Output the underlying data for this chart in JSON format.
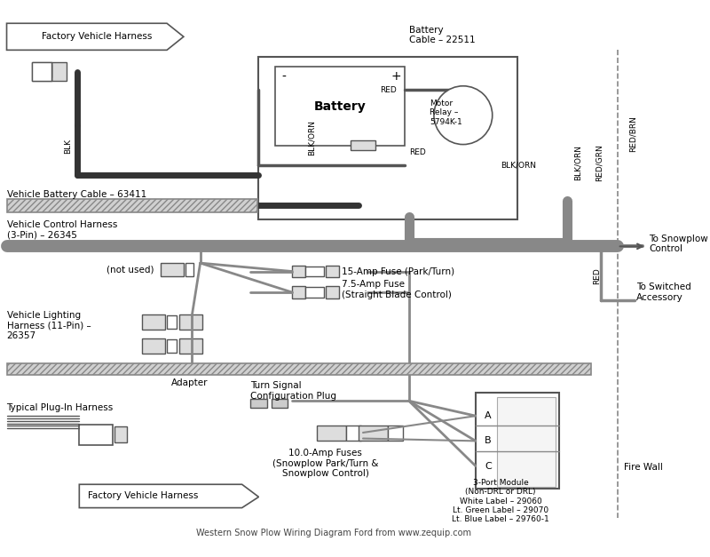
{
  "title": "Western Snow Plow Wiring Diagram Ford from www.zequip.com",
  "bg_color": "#ffffff",
  "wire_color": "#808080",
  "wire_thick_color": "#404040",
  "black_wire": "#222222",
  "label_fontsize": 7.5,
  "small_fontsize": 6.5,
  "labels": {
    "factory_vehicle_harness_top": "Factory Vehicle Harness",
    "battery_cable": "Battery\nCable – 22511",
    "battery_label": "Battery",
    "motor_relay": "Motor\nRelay –\n5794K-1",
    "vehicle_battery_cable": "Vehicle Battery Cable – 63411",
    "vehicle_control_harness": "Vehicle Control Harness\n(3-Pin) – 26345",
    "not_used": "(not used)",
    "fuse_15": "15-Amp Fuse (Park/Turn)",
    "fuse_7_5": "7.5-Amp Fuse\n(Straight Blade Control)",
    "vehicle_lighting": "Vehicle Lighting\nHarness (11-Pin) –\n26357",
    "adapter": "Adapter",
    "turn_signal": "Turn Signal\nConfiguration Plug",
    "typical_plug": "Typical Plug-In Harness",
    "fuses_10": "10.0-Amp Fuses\n(Snowplow Park/Turn &\nSnowplow Control)",
    "three_port": "3-Port Module\n(Non-DRL or DRL)\nWhite Label – 29060\nLt. Green Label – 29070\nLt. Blue Label – 29760-1",
    "fire_wall": "Fire Wall",
    "to_snowplow": "To Snowplow\nControl",
    "to_switched": "To Switched\nAccessory",
    "blk": "BLK",
    "blk_orn1": "BLK/ORN",
    "blk_orn2": "BLK/ORN",
    "blk_orn3": "BLK/ORN",
    "red_brn": "RED/BRN",
    "red_grn": "RED/GRN",
    "red1": "RED",
    "red2": "RED",
    "red3": "RED",
    "factory_vehicle_harness_bottom": "Factory Vehicle Harness"
  }
}
